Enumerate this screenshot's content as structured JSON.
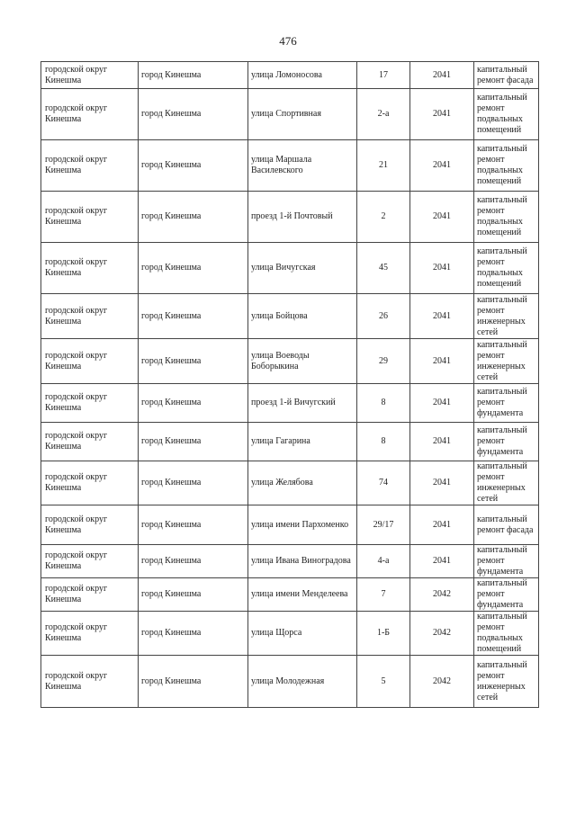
{
  "page_number": "476",
  "rows": [
    {
      "district": "городской округ Кинешма",
      "city": "город Кинешма",
      "street": "улица Ломоносова",
      "house": "17",
      "year": "2041",
      "work": "капитальный ремонт фасада"
    },
    {
      "district": "городской округ Кинешма",
      "city": "город Кинешма",
      "street": "улица Спортивная",
      "house": "2-а",
      "year": "2041",
      "work": "капитальный ремонт подвальных помещений"
    },
    {
      "district": "городской округ Кинешма",
      "city": "город Кинешма",
      "street": "улица Маршала Василевского",
      "house": "21",
      "year": "2041",
      "work": "капитальный ремонт подвальных помещений"
    },
    {
      "district": "городской округ Кинешма",
      "city": "город Кинешма",
      "street": "проезд 1-й Почтовый",
      "house": "2",
      "year": "2041",
      "work": "капитальный ремонт подвальных помещений"
    },
    {
      "district": "городской округ Кинешма",
      "city": "город Кинешма",
      "street": "улица Вичугская",
      "house": "45",
      "year": "2041",
      "work": "капитальный ремонт подвальных помещений"
    },
    {
      "district": "городской округ Кинешма",
      "city": "город Кинешма",
      "street": "улица Бойцова",
      "house": "26",
      "year": "2041",
      "work": "капитальный ремонт инженерных сетей"
    },
    {
      "district": "городской округ Кинешма",
      "city": "город Кинешма",
      "street": "улица Воеводы Боборыкина",
      "house": "29",
      "year": "2041",
      "work": "капитальный ремонт инженерных сетей"
    },
    {
      "district": "городской округ Кинешма",
      "city": "город Кинешма",
      "street": "проезд 1-й Вичугский",
      "house": "8",
      "year": "2041",
      "work": "капитальный ремонт фундамента"
    },
    {
      "district": "городской округ Кинешма",
      "city": "город Кинешма",
      "street": "улица Гагарина",
      "house": "8",
      "year": "2041",
      "work": "капитальный ремонт фундамента"
    },
    {
      "district": "городской округ Кинешма",
      "city": "город Кинешма",
      "street": "улица Желябова",
      "house": "74",
      "year": "2041",
      "work": "капитальный ремонт инженерных сетей"
    },
    {
      "district": "городской округ Кинешма",
      "city": "город Кинешма",
      "street": "улица имени Пархоменко",
      "house": "29/17",
      "year": "2041",
      "work": "капитальный ремонт фасада"
    },
    {
      "district": "городской округ Кинешма",
      "city": "город Кинешма",
      "street": "улица Ивана Виноградова",
      "house": "4-а",
      "year": "2041",
      "work": "капитальный ремонт фундамента"
    },
    {
      "district": "городской округ Кинешма",
      "city": "город Кинешма",
      "street": "улица имени Менделеева",
      "house": "7",
      "year": "2042",
      "work": "капитальный ремонт фундамента"
    },
    {
      "district": "городской округ Кинешма",
      "city": "город Кинешма",
      "street": "улица Щорса",
      "house": "1-Б",
      "year": "2042",
      "work": "капитальный ремонт подвальных помещений"
    },
    {
      "district": "городской округ Кинешма",
      "city": "город Кинешма",
      "street": "улица Молодежная",
      "house": "5",
      "year": "2042",
      "work": "капитальный ремонт инженерных сетей"
    }
  ]
}
